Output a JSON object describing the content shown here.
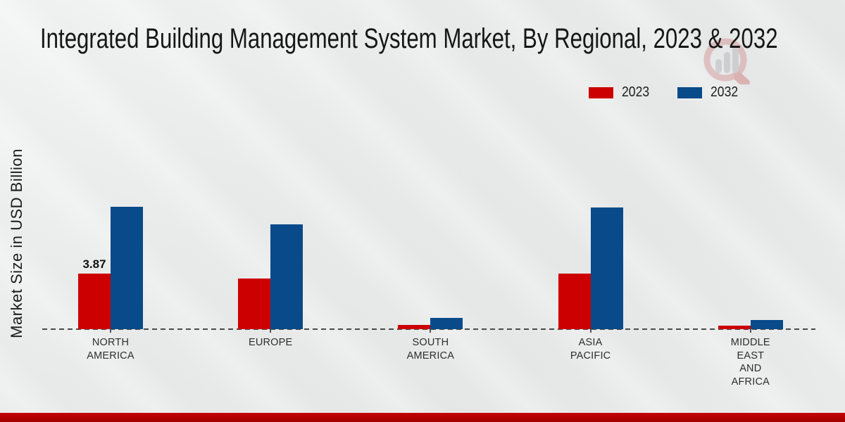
{
  "chart_data": {
    "type": "bar",
    "title": "Integrated Building Management System Market, By Regional, 2023 & 2032",
    "ylabel": "Market Size in USD Billion",
    "xlabel": "",
    "categories": [
      "NORTH\nAMERICA",
      "EUROPE",
      "SOUTH\nAMERICA",
      "ASIA\nPACIFIC",
      "MIDDLE\nEAST\nAND\nAFRICA"
    ],
    "series": [
      {
        "name": "2023",
        "color": "#cc0000",
        "values": [
          3.87,
          3.55,
          0.3,
          3.9,
          0.25
        ]
      },
      {
        "name": "2032",
        "color": "#084a8a",
        "values": [
          8.55,
          7.35,
          0.8,
          8.5,
          0.65
        ]
      }
    ],
    "ylim": [
      0,
      9.6
    ],
    "grid": false,
    "legend_position": "top-right",
    "baseline_style": "dashed",
    "annotations": [
      {
        "series": "2023",
        "category_index": 0,
        "text": "3.87"
      }
    ]
  },
  "footer": {
    "accent_color": "#b80000"
  },
  "watermark": {
    "name": "magnifier-bar-chart-logo"
  }
}
